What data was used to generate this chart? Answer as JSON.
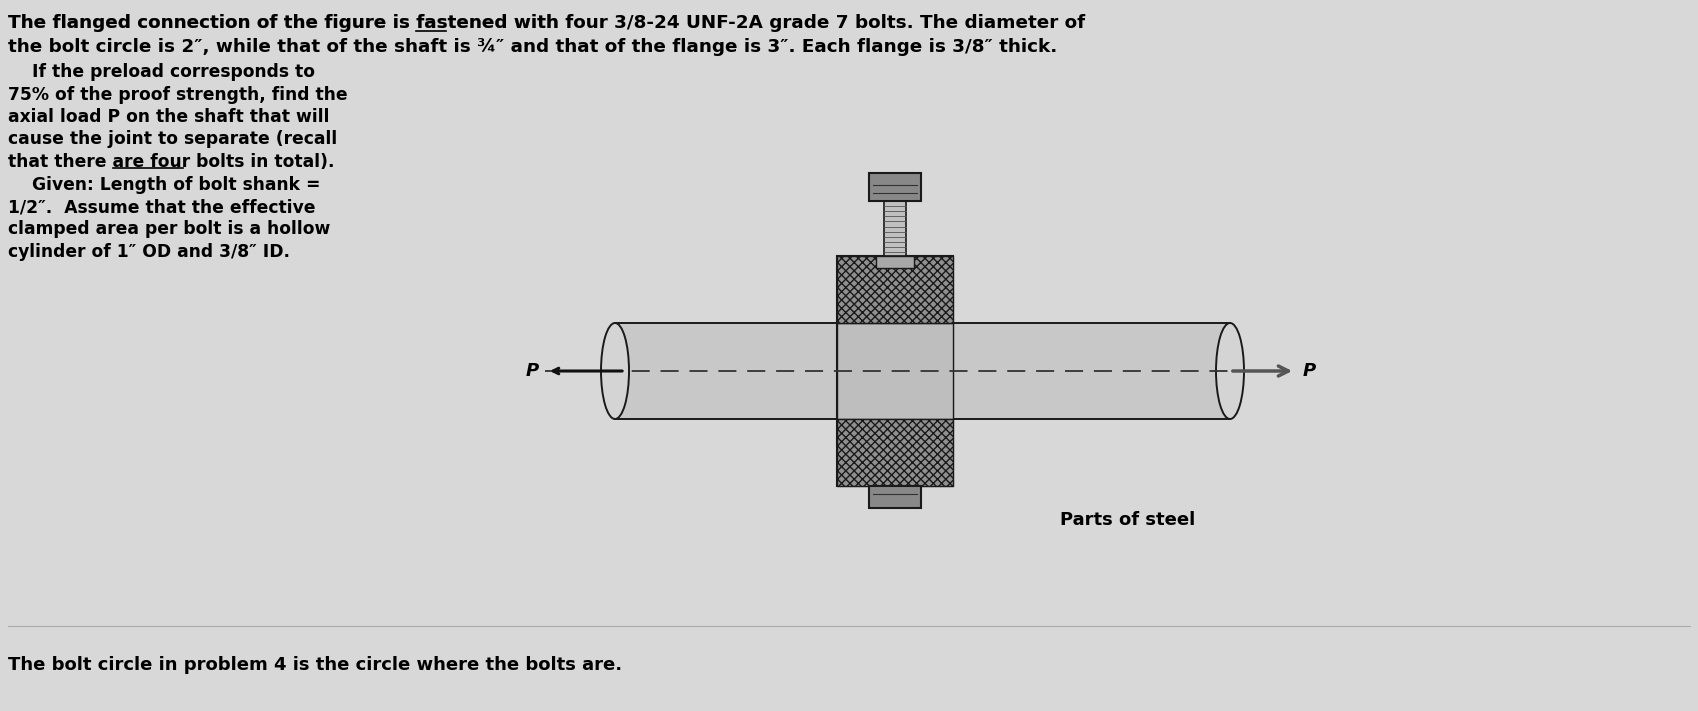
{
  "bg_color": "#d8d8d8",
  "title_line1_pre": "The flanged connection of the figure is fastened with ",
  "title_line1_ul": "four",
  "title_line1_post": " 3/8-24 UNF-2A grade 7 bolts. The diameter of",
  "title_line2": "the bolt circle is 2″, while that of the shaft is ¾″ and that of the flange is 3″. Each flange is 3/8″ thick.",
  "body_lines": [
    "    If the preload corresponds to",
    "75% of the proof strength, find the",
    "axial load P on the shaft that will",
    "cause the joint to separate (recall",
    "that there are ULSTART four bolts ULEND in total).",
    "    Given: Length of bolt shank =",
    "1/2″.  Assume that the effective",
    "clamped area per bolt is a hollow",
    "cylinder of 1″ OD and 3/8″ ID."
  ],
  "parts_label": "Parts of steel",
  "bottom_text": "The bolt circle in problem 4 is the circle where the bolts are.",
  "text_color": "#000000"
}
